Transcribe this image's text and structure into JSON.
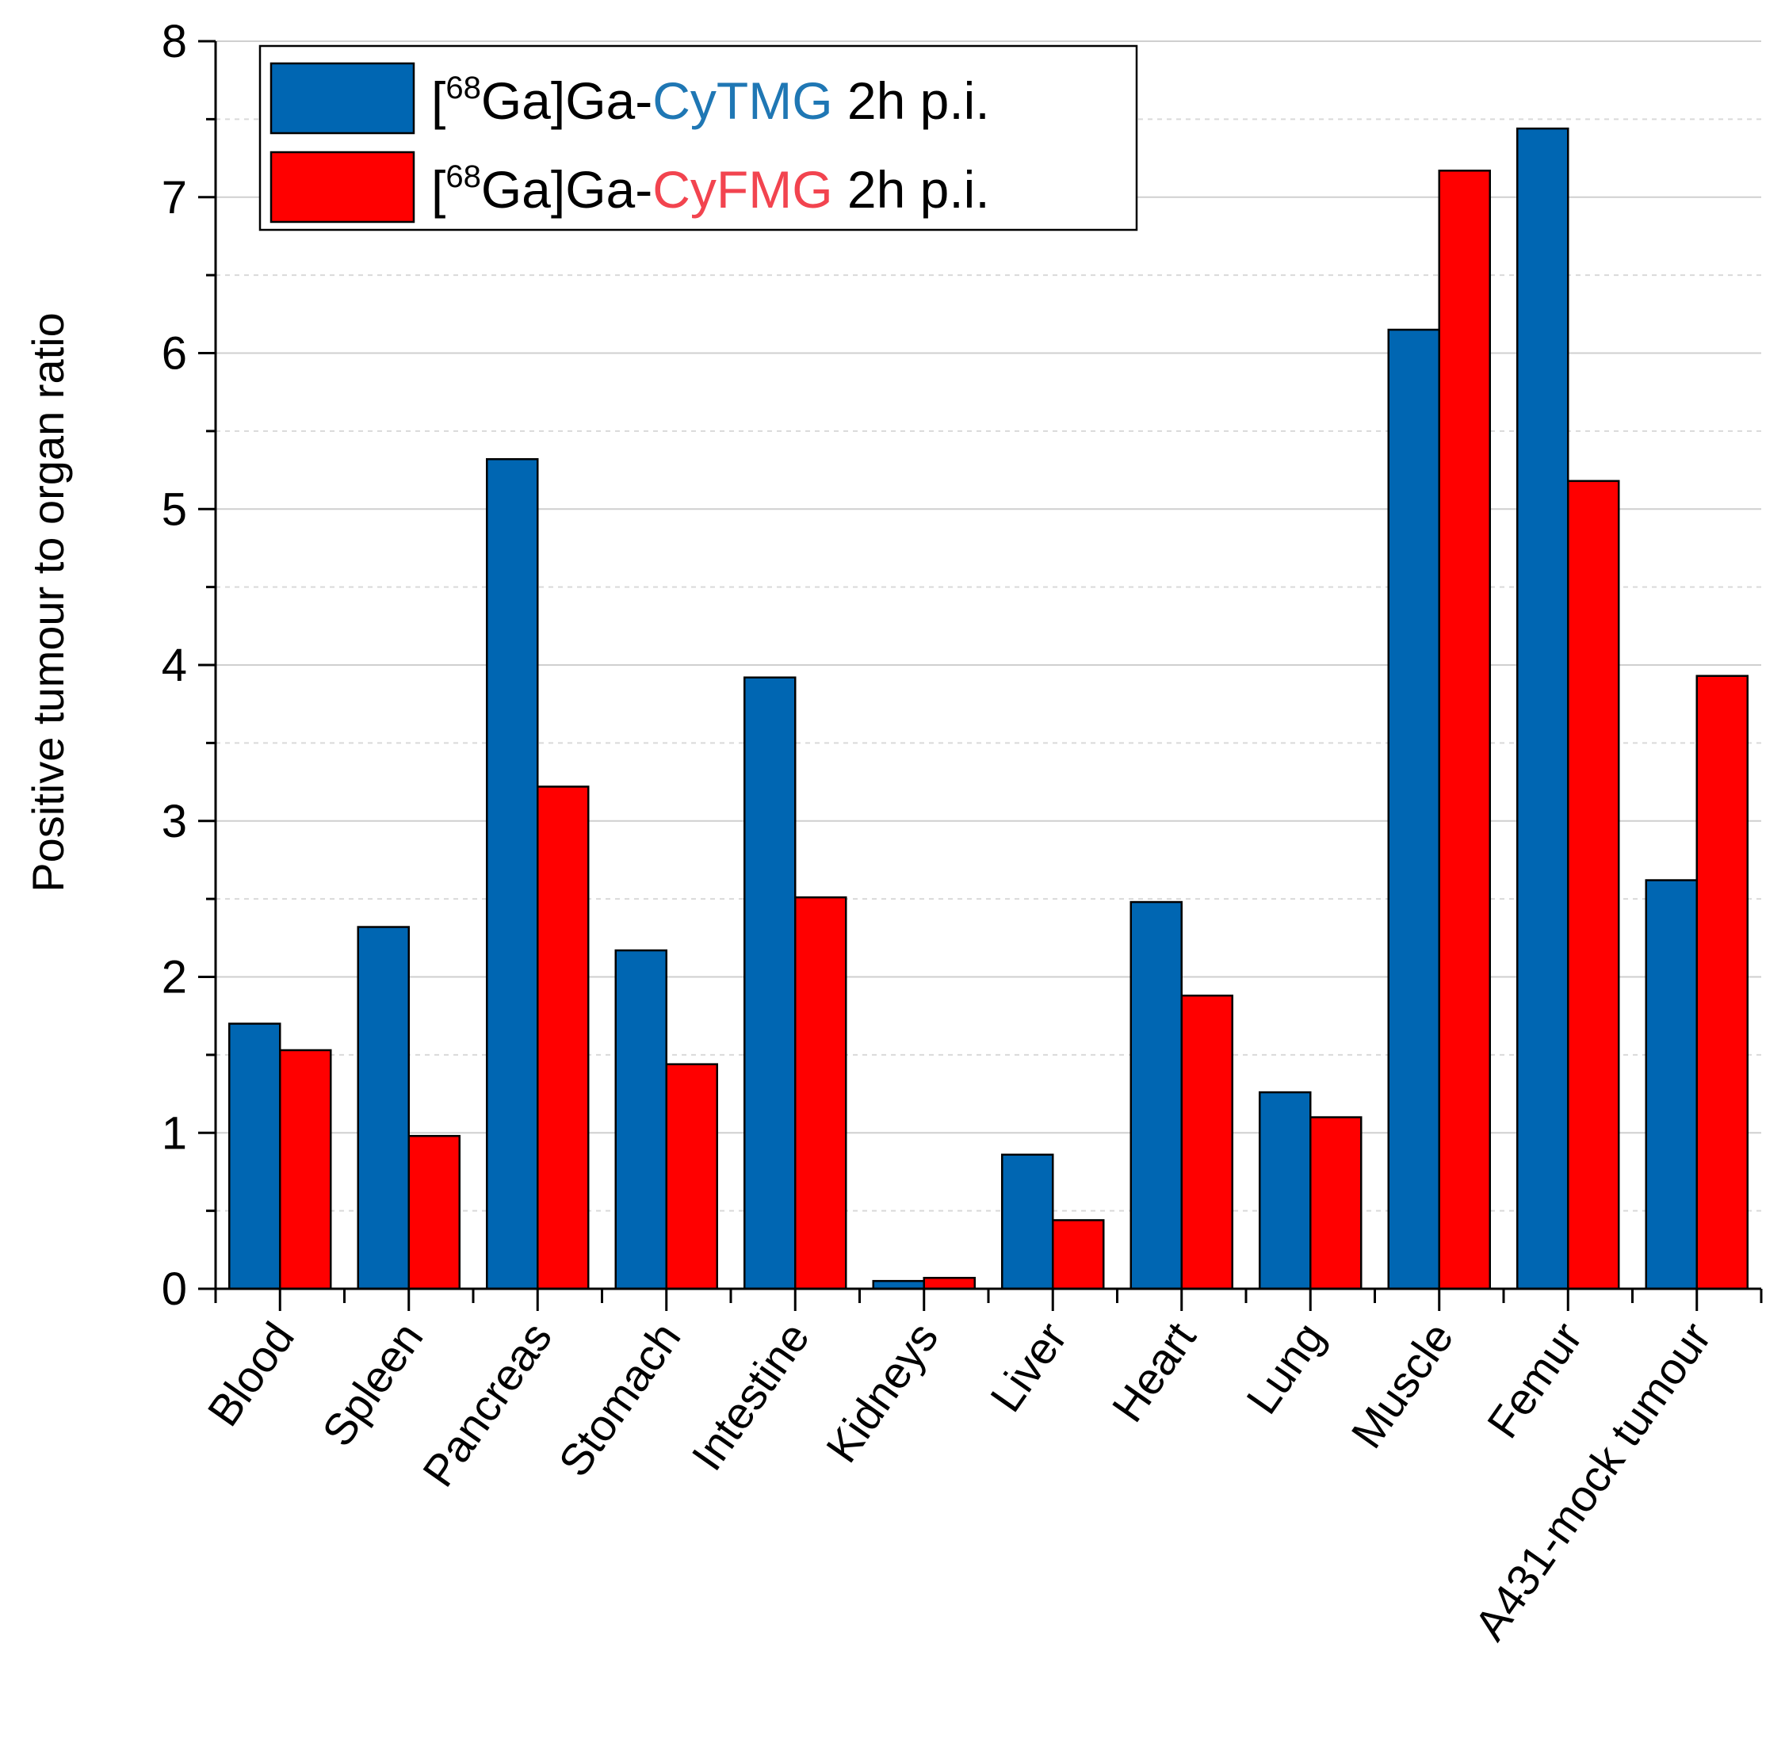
{
  "chart_data": {
    "type": "bar",
    "title": "",
    "xlabel": "",
    "ylabel": "Positive tumour to organ ratio",
    "ylim": [
      0,
      8
    ],
    "yticks": [
      "0",
      "1",
      "2",
      "3",
      "4",
      "5",
      "6",
      "7",
      "8"
    ],
    "grid": "horizontal, solid at integers, dashed at half-units",
    "legend_position": "top-left",
    "categories": [
      "Blood",
      "Spleen",
      "Pancreas",
      "Stomach",
      "Intestine",
      "Kidneys",
      "Liver",
      "Heart",
      "Lung",
      "Muscle",
      "Femur",
      "A431-mock tumour"
    ],
    "series": [
      {
        "name": "[68Ga]Ga-CyTMG 2h p.i.",
        "legend": {
          "prefix": "[",
          "sup": "68",
          "mid": "Ga]Ga-",
          "highlight": "CyTMG",
          "suffix": " 2h p.i.",
          "highlight_color": "#1f77b4"
        },
        "color": "#0066b2",
        "values": [
          1.7,
          2.32,
          5.32,
          2.17,
          3.92,
          0.05,
          0.86,
          2.48,
          1.26,
          6.15,
          7.44,
          2.62
        ]
      },
      {
        "name": "[68Ga]Ga-CyFMG 2h p.i.",
        "legend": {
          "prefix": "[",
          "sup": "68",
          "mid": "Ga]Ga-",
          "highlight": "CyFMG",
          "suffix": " 2h p.i.",
          "highlight_color": "#f2444f"
        },
        "color": "#ff0000",
        "values": [
          1.53,
          0.98,
          3.22,
          1.44,
          2.51,
          0.07,
          0.44,
          1.88,
          1.1,
          7.17,
          5.18,
          3.93
        ]
      }
    ]
  }
}
